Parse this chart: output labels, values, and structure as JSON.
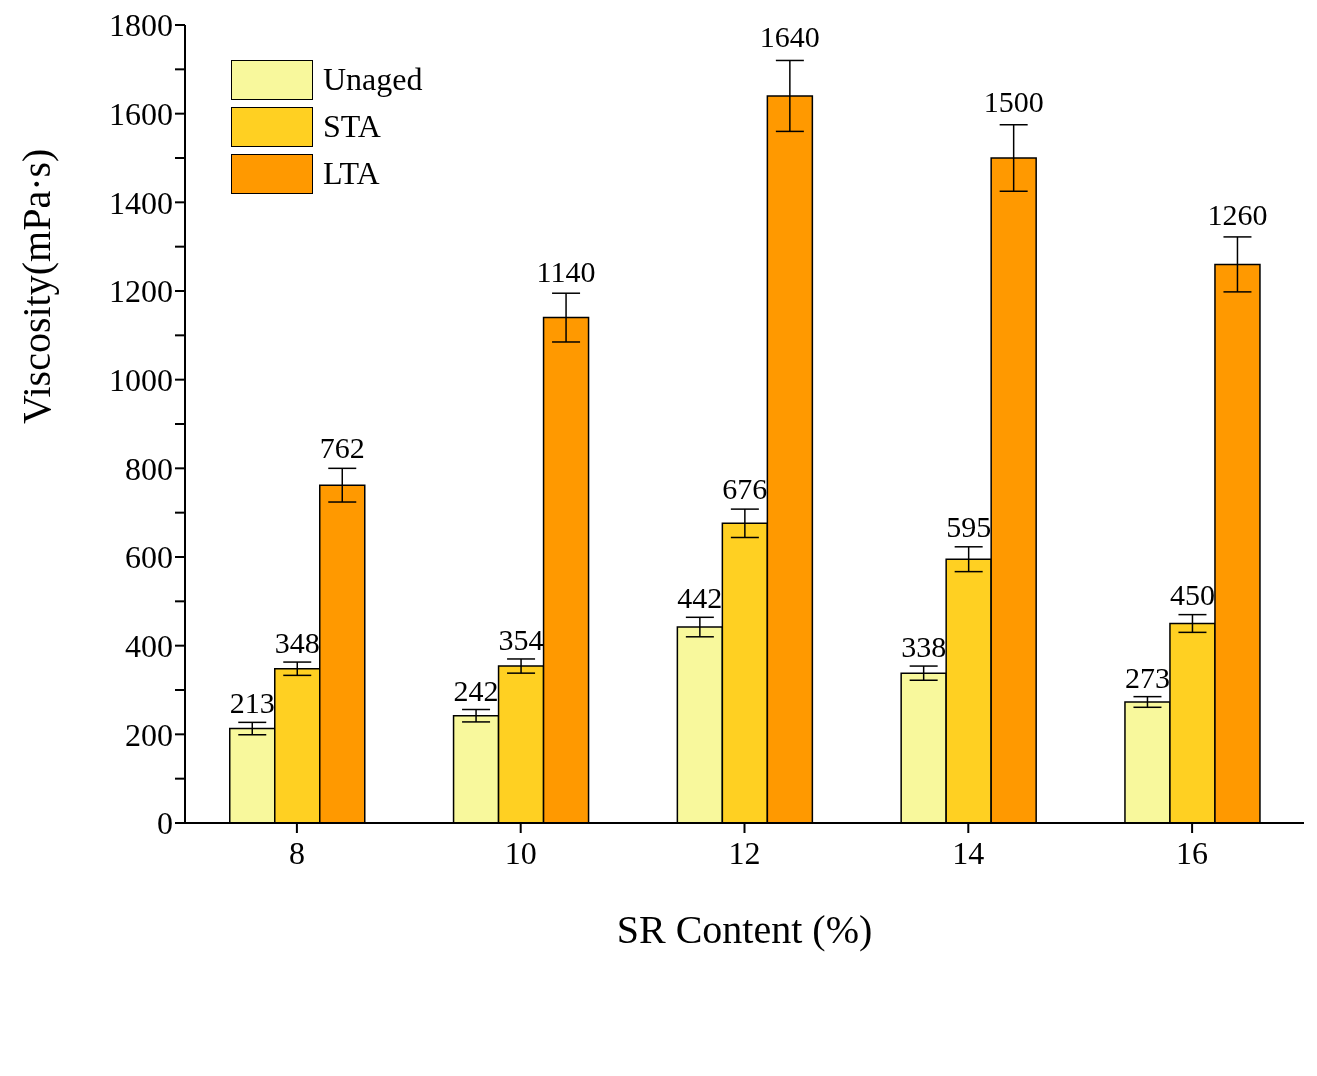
{
  "chart_data": {
    "type": "bar",
    "xlabel": "SR Content (%)",
    "ylabel": "Viscosity(mPa·s)",
    "categories": [
      "8",
      "10",
      "12",
      "14",
      "16"
    ],
    "series": [
      {
        "name": "Unaged",
        "color": "#f8f89c",
        "values": [
          213,
          242,
          442,
          338,
          273
        ],
        "errors": [
          14,
          14,
          22,
          16,
          12
        ]
      },
      {
        "name": "STA",
        "color": "#ffd022",
        "values": [
          348,
          354,
          676,
          595,
          450
        ],
        "errors": [
          15,
          16,
          32,
          28,
          20
        ]
      },
      {
        "name": "LTA",
        "color": "#ff9900",
        "values": [
          762,
          1140,
          1640,
          1500,
          1260
        ],
        "errors": [
          38,
          55,
          80,
          75,
          62
        ]
      }
    ],
    "ylim": [
      0,
      1800
    ],
    "yticks": [
      0,
      {
        "value": 100,
        "label": null
      },
      200,
      {
        "value": 300,
        "label": null
      },
      400,
      {
        "value": 500,
        "label": null
      },
      600,
      {
        "value": 700,
        "label": null
      },
      800,
      {
        "value": 900,
        "label": null
      },
      1000,
      {
        "value": 1100,
        "label": null
      },
      1200,
      {
        "value": 1300,
        "label": null
      },
      1400,
      {
        "value": 1500,
        "label": null
      },
      1600,
      {
        "value": 1700,
        "label": null
      },
      1800
    ],
    "data_labels": true,
    "legend": "top left",
    "grid": false
  }
}
